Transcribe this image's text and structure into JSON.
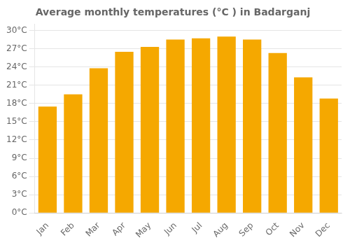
{
  "chart_data": {
    "type": "bar",
    "title": "Average monthly temperatures (°C ) in Badarganj",
    "categories": [
      "Jan",
      "Feb",
      "Mar",
      "Apr",
      "May",
      "Jun",
      "Jul",
      "Aug",
      "Sep",
      "Oct",
      "Nov",
      "Dec"
    ],
    "values": [
      17.5,
      19.5,
      23.8,
      26.5,
      27.3,
      28.5,
      28.7,
      29.0,
      28.5,
      26.3,
      22.3,
      18.8
    ],
    "color": "#F5A800",
    "ylim": [
      0,
      31
    ],
    "yticks": [
      {
        "value": 0,
        "label": "0°C"
      },
      {
        "value": 3,
        "label": "3°C"
      },
      {
        "value": 6,
        "label": "6°C"
      },
      {
        "value": 9,
        "label": "9°C"
      },
      {
        "value": 12,
        "label": "12°C"
      },
      {
        "value": 15,
        "label": "15°C"
      },
      {
        "value": 18,
        "label": "18°C"
      },
      {
        "value": 21,
        "label": "21°C"
      },
      {
        "value": 24,
        "label": "24°C"
      },
      {
        "value": 27,
        "label": "27°C"
      },
      {
        "value": 30,
        "label": "30°C"
      }
    ],
    "grid": true
  }
}
